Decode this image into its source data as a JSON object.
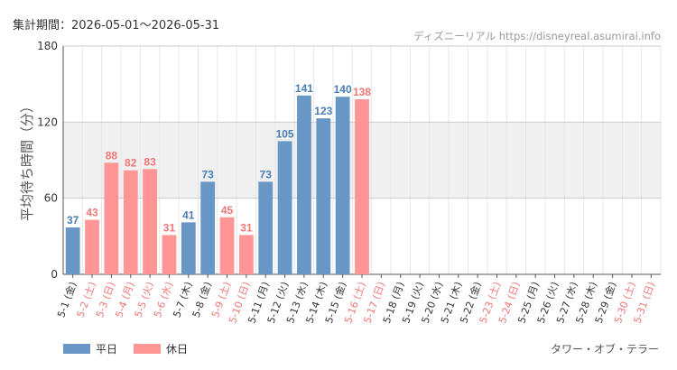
{
  "period": {
    "label": "集計期間：",
    "range": "2026-05-01〜2026-05-31"
  },
  "source": {
    "site": "ディズニーリアル",
    "url": "https://disneyreal.asumirai.info"
  },
  "attraction": "タワー・オブ・テラー",
  "legend": {
    "weekday": "平日",
    "holiday": "休日"
  },
  "colors": {
    "weekday": "#6897c6",
    "holiday": "#ff9595",
    "weekday_label": "#4a7eb5",
    "holiday_label": "#f07676",
    "band": "#f0f0f0"
  },
  "chart_data": {
    "type": "bar",
    "ylabel": "平均待ち時間（分）",
    "ylim": [
      0,
      180
    ],
    "yticks": [
      0,
      60,
      120,
      180
    ],
    "bands": [
      [
        60,
        120
      ]
    ],
    "categories": [
      "5-1 (金)",
      "5-2 (土)",
      "5-3 (日)",
      "5-4 (月)",
      "5-5 (火)",
      "5-6 (水)",
      "5-7 (木)",
      "5-8 (金)",
      "5-9 (土)",
      "5-10 (日)",
      "5-11 (月)",
      "5-12 (火)",
      "5-13 (水)",
      "5-14 (木)",
      "5-15 (金)",
      "5-16 (土)",
      "5-17 (日)",
      "5-18 (月)",
      "5-19 (火)",
      "5-20 (水)",
      "5-21 (木)",
      "5-22 (金)",
      "5-23 (土)",
      "5-24 (日)",
      "5-25 (月)",
      "5-26 (火)",
      "5-27 (水)",
      "5-28 (木)",
      "5-29 (金)",
      "5-30 (土)",
      "5-31 (日)"
    ],
    "day_types": [
      "weekday",
      "holiday",
      "holiday",
      "holiday",
      "holiday",
      "holiday",
      "weekday",
      "weekday",
      "holiday",
      "holiday",
      "weekday",
      "weekday",
      "weekday",
      "weekday",
      "weekday",
      "holiday",
      "holiday",
      "weekday",
      "weekday",
      "weekday",
      "weekday",
      "weekday",
      "holiday",
      "holiday",
      "weekday",
      "weekday",
      "weekday",
      "weekday",
      "weekday",
      "holiday",
      "holiday"
    ],
    "values": [
      37,
      43,
      88,
      82,
      83,
      31,
      41,
      73,
      45,
      31,
      73,
      105,
      141,
      123,
      140,
      138,
      null,
      null,
      null,
      null,
      null,
      null,
      null,
      null,
      null,
      null,
      null,
      null,
      null,
      null,
      null
    ]
  }
}
